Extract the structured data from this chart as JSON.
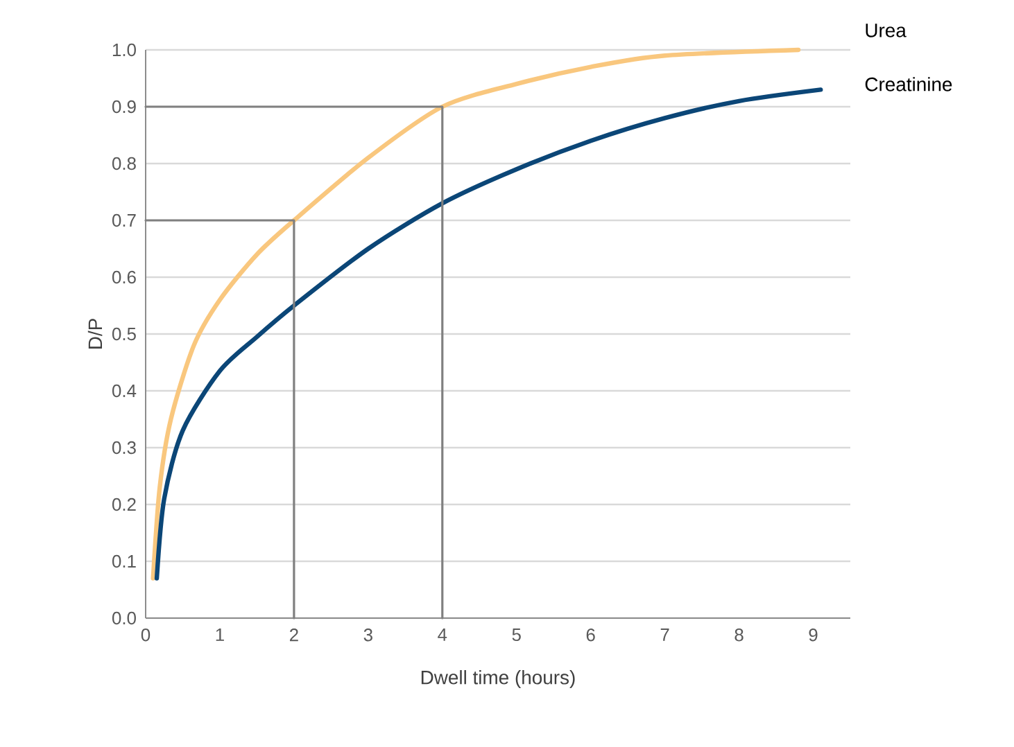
{
  "chart_data": {
    "type": "line",
    "xlabel": "Dwell time (hours)",
    "ylabel": "D/P",
    "xlim": [
      0,
      9.5
    ],
    "ylim": [
      0,
      1
    ],
    "xticks": [
      0,
      1,
      2,
      3,
      4,
      5,
      6,
      7,
      8,
      9
    ],
    "yticks": [
      {
        "value": 0,
        "label": "0.0"
      },
      0.1,
      0.2,
      0.3,
      0.4,
      0.5,
      0.6,
      0.7,
      0.8,
      0.9,
      {
        "value": 1,
        "label": "1.0"
      }
    ],
    "grid": "y",
    "legend": false,
    "marker": "none",
    "line_style": "solid",
    "series": [
      {
        "name": "Urea",
        "color": "#f9c77e",
        "x": [
          0.1,
          0.19,
          0.34,
          0.65,
          1,
          1.5,
          2,
          3,
          4,
          5,
          6,
          7,
          8.8
        ],
        "values": [
          0.07,
          0.23,
          0.35,
          0.48,
          0.56,
          0.64,
          0.7,
          0.81,
          0.9,
          0.94,
          0.97,
          0.99,
          1.0
        ]
      },
      {
        "name": "Creatinine",
        "color": "#0b4677",
        "x": [
          0.15,
          0.25,
          0.5,
          1,
          1.5,
          2,
          3,
          4,
          5,
          6,
          7,
          8,
          9.1
        ],
        "values": [
          0.07,
          0.21,
          0.33,
          0.435,
          0.495,
          0.55,
          0.65,
          0.73,
          0.79,
          0.84,
          0.88,
          0.91,
          0.93
        ]
      },
      {
        "color": "#808080",
        "x": [
          0,
          2,
          2
        ],
        "values": [
          0.7,
          0.7,
          0
        ]
      },
      {
        "color": "#808080",
        "x": [
          0,
          4,
          4
        ],
        "values": [
          0.9,
          0.9,
          0
        ]
      }
    ]
  }
}
